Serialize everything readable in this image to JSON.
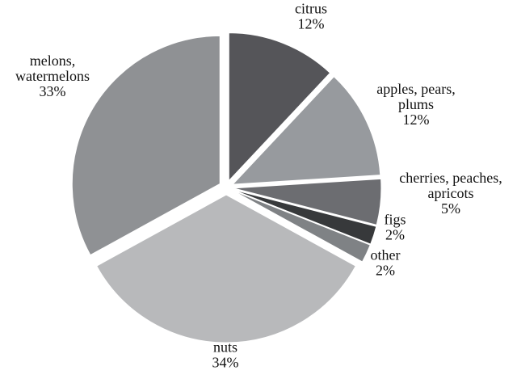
{
  "chart_data": {
    "type": "pie",
    "exploded": true,
    "start_angle_deg": 0,
    "direction": "clockwise",
    "slices": [
      {
        "label_lines": [
          "citrus"
        ],
        "value": 12,
        "value_label": "12%",
        "color": "#555559"
      },
      {
        "label_lines": [
          "apples, pears,",
          "plums"
        ],
        "value": 12,
        "value_label": "12%",
        "color": "#979a9e"
      },
      {
        "label_lines": [
          "cherries, peaches,",
          "apricots"
        ],
        "value": 5,
        "value_label": "5%",
        "color": "#6c6d71"
      },
      {
        "label_lines": [
          "figs"
        ],
        "value": 2,
        "value_label": "2%",
        "color": "#37393b"
      },
      {
        "label_lines": [
          "other"
        ],
        "value": 2,
        "value_label": "2%",
        "color": "#7f8285"
      },
      {
        "label_lines": [
          "nuts"
        ],
        "value": 34,
        "value_label": "34%",
        "color": "#b8b9bb"
      },
      {
        "label_lines": [
          "melons,",
          "watermelons"
        ],
        "value": 33,
        "value_label": "33%",
        "color": "#8f9194"
      }
    ]
  }
}
